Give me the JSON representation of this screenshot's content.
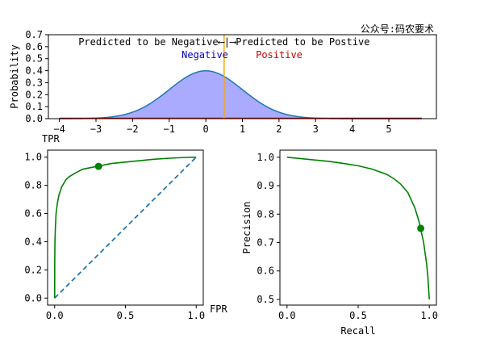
{
  "watermark": "公众号:码农要术",
  "colors": {
    "bg": "#ffffff",
    "axis": "#000000",
    "dist_line": "#1f77b4",
    "dist_fill": "#aaaaff",
    "positive_line": "#cc0000",
    "threshold": "#ffa500",
    "curve": "#008000",
    "diagonal": "#1f77b4",
    "negative_text": "#0000cc",
    "positive_text": "#cc0000"
  },
  "chart_data": [
    {
      "id": "distribution",
      "type": "area",
      "ylabel": "Probability",
      "xlim": [
        -4.3,
        6.3
      ],
      "ylim": [
        0,
        0.7
      ],
      "xticks": [
        -4,
        -3,
        -2,
        -1,
        0,
        1,
        2,
        3,
        4,
        5
      ],
      "yticks": [
        0.0,
        0.1,
        0.2,
        0.3,
        0.4,
        0.5,
        0.6,
        0.7
      ],
      "series": [
        {
          "kind": "normal_pdf",
          "mean": 0,
          "std": 1,
          "x_range": [
            -4,
            5.9
          ],
          "peak": 0.4
        }
      ],
      "positive_baseline": {
        "x_range": [
          -4,
          5.9
        ],
        "y": 0
      },
      "threshold": 0.5,
      "annotation_top": "Predicted to be Negative⟵|⟶Predicted to be Postive",
      "label_negative": "Negative",
      "label_positive": "Positive"
    },
    {
      "id": "roc",
      "type": "line",
      "xlabel": "FPR",
      "ylabel": "TPR",
      "xlim": [
        -0.05,
        1.05
      ],
      "ylim": [
        -0.05,
        1.05
      ],
      "xticks": [
        0.0,
        0.5,
        1.0
      ],
      "yticks": [
        0.0,
        0.2,
        0.4,
        0.6,
        0.8,
        1.0
      ],
      "x": [
        0,
        0.0005,
        0.002,
        0.005,
        0.01,
        0.02,
        0.03,
        0.05,
        0.08,
        0.1,
        0.15,
        0.2,
        0.25,
        0.3,
        0.35,
        0.4,
        0.5,
        0.6,
        0.7,
        0.8,
        0.9,
        1.0
      ],
      "y": [
        0,
        0.25,
        0.4,
        0.5,
        0.6,
        0.68,
        0.73,
        0.79,
        0.84,
        0.86,
        0.89,
        0.915,
        0.925,
        0.935,
        0.945,
        0.955,
        0.965,
        0.975,
        0.985,
        0.992,
        0.997,
        1.0
      ],
      "diagonal": [
        [
          0,
          0
        ],
        [
          1,
          1
        ]
      ],
      "marker": {
        "x": 0.31,
        "y": 0.935
      }
    },
    {
      "id": "pr",
      "type": "line",
      "xlabel": "Recall",
      "ylabel": "Precision",
      "xlim": [
        -0.05,
        1.05
      ],
      "ylim": [
        0.48,
        1.025
      ],
      "xticks": [
        0.0,
        0.5,
        1.0
      ],
      "yticks": [
        0.5,
        0.6,
        0.7,
        0.8,
        0.9,
        1.0
      ],
      "x": [
        0,
        0.1,
        0.2,
        0.3,
        0.4,
        0.5,
        0.6,
        0.7,
        0.75,
        0.8,
        0.85,
        0.9,
        0.93,
        0.96,
        0.98,
        0.99,
        1.0
      ],
      "y": [
        1.0,
        0.995,
        0.99,
        0.985,
        0.978,
        0.97,
        0.958,
        0.94,
        0.925,
        0.905,
        0.875,
        0.82,
        0.77,
        0.7,
        0.63,
        0.58,
        0.5
      ],
      "marker": {
        "x": 0.94,
        "y": 0.75
      }
    }
  ]
}
